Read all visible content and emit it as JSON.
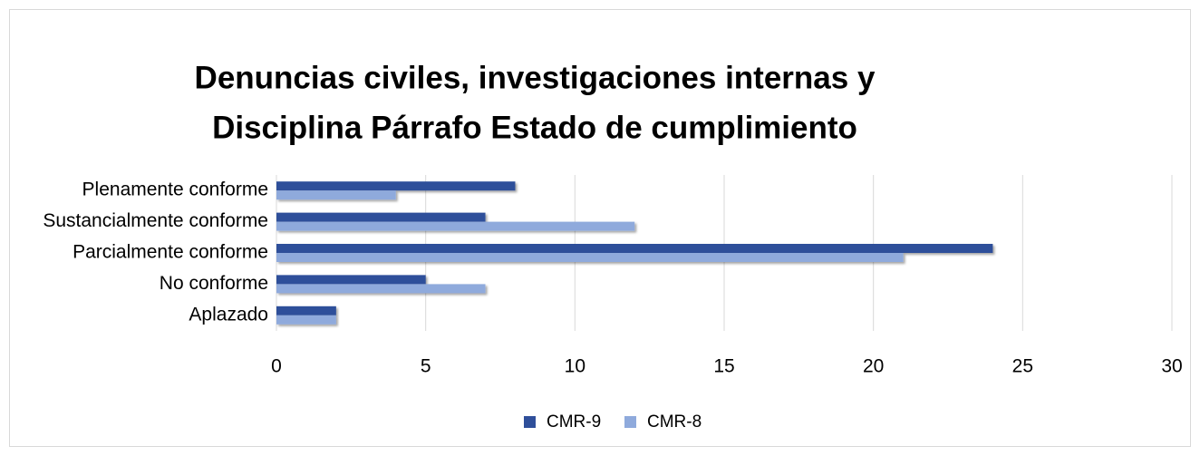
{
  "chart_data": {
    "type": "bar",
    "orientation": "horizontal",
    "title": [
      "Denuncias civiles, investigaciones internas y",
      "Disciplina Párrafo Estado de cumplimiento"
    ],
    "categories": [
      "Plenamente conforme",
      "Sustancialmente conforme",
      "Parcialmente conforme",
      "No conforme",
      "Aplazado"
    ],
    "series": [
      {
        "name": "CMR-9",
        "color": "#2f4f9a",
        "values": [
          8,
          7,
          24,
          5,
          2
        ]
      },
      {
        "name": "CMR-8",
        "color": "#8faadc",
        "values": [
          4,
          12,
          21,
          7,
          2
        ]
      }
    ],
    "xlim": [
      0,
      30
    ],
    "xticks": [
      0,
      5,
      10,
      15,
      20,
      25,
      30
    ],
    "grid": true,
    "legend": "bottom"
  }
}
